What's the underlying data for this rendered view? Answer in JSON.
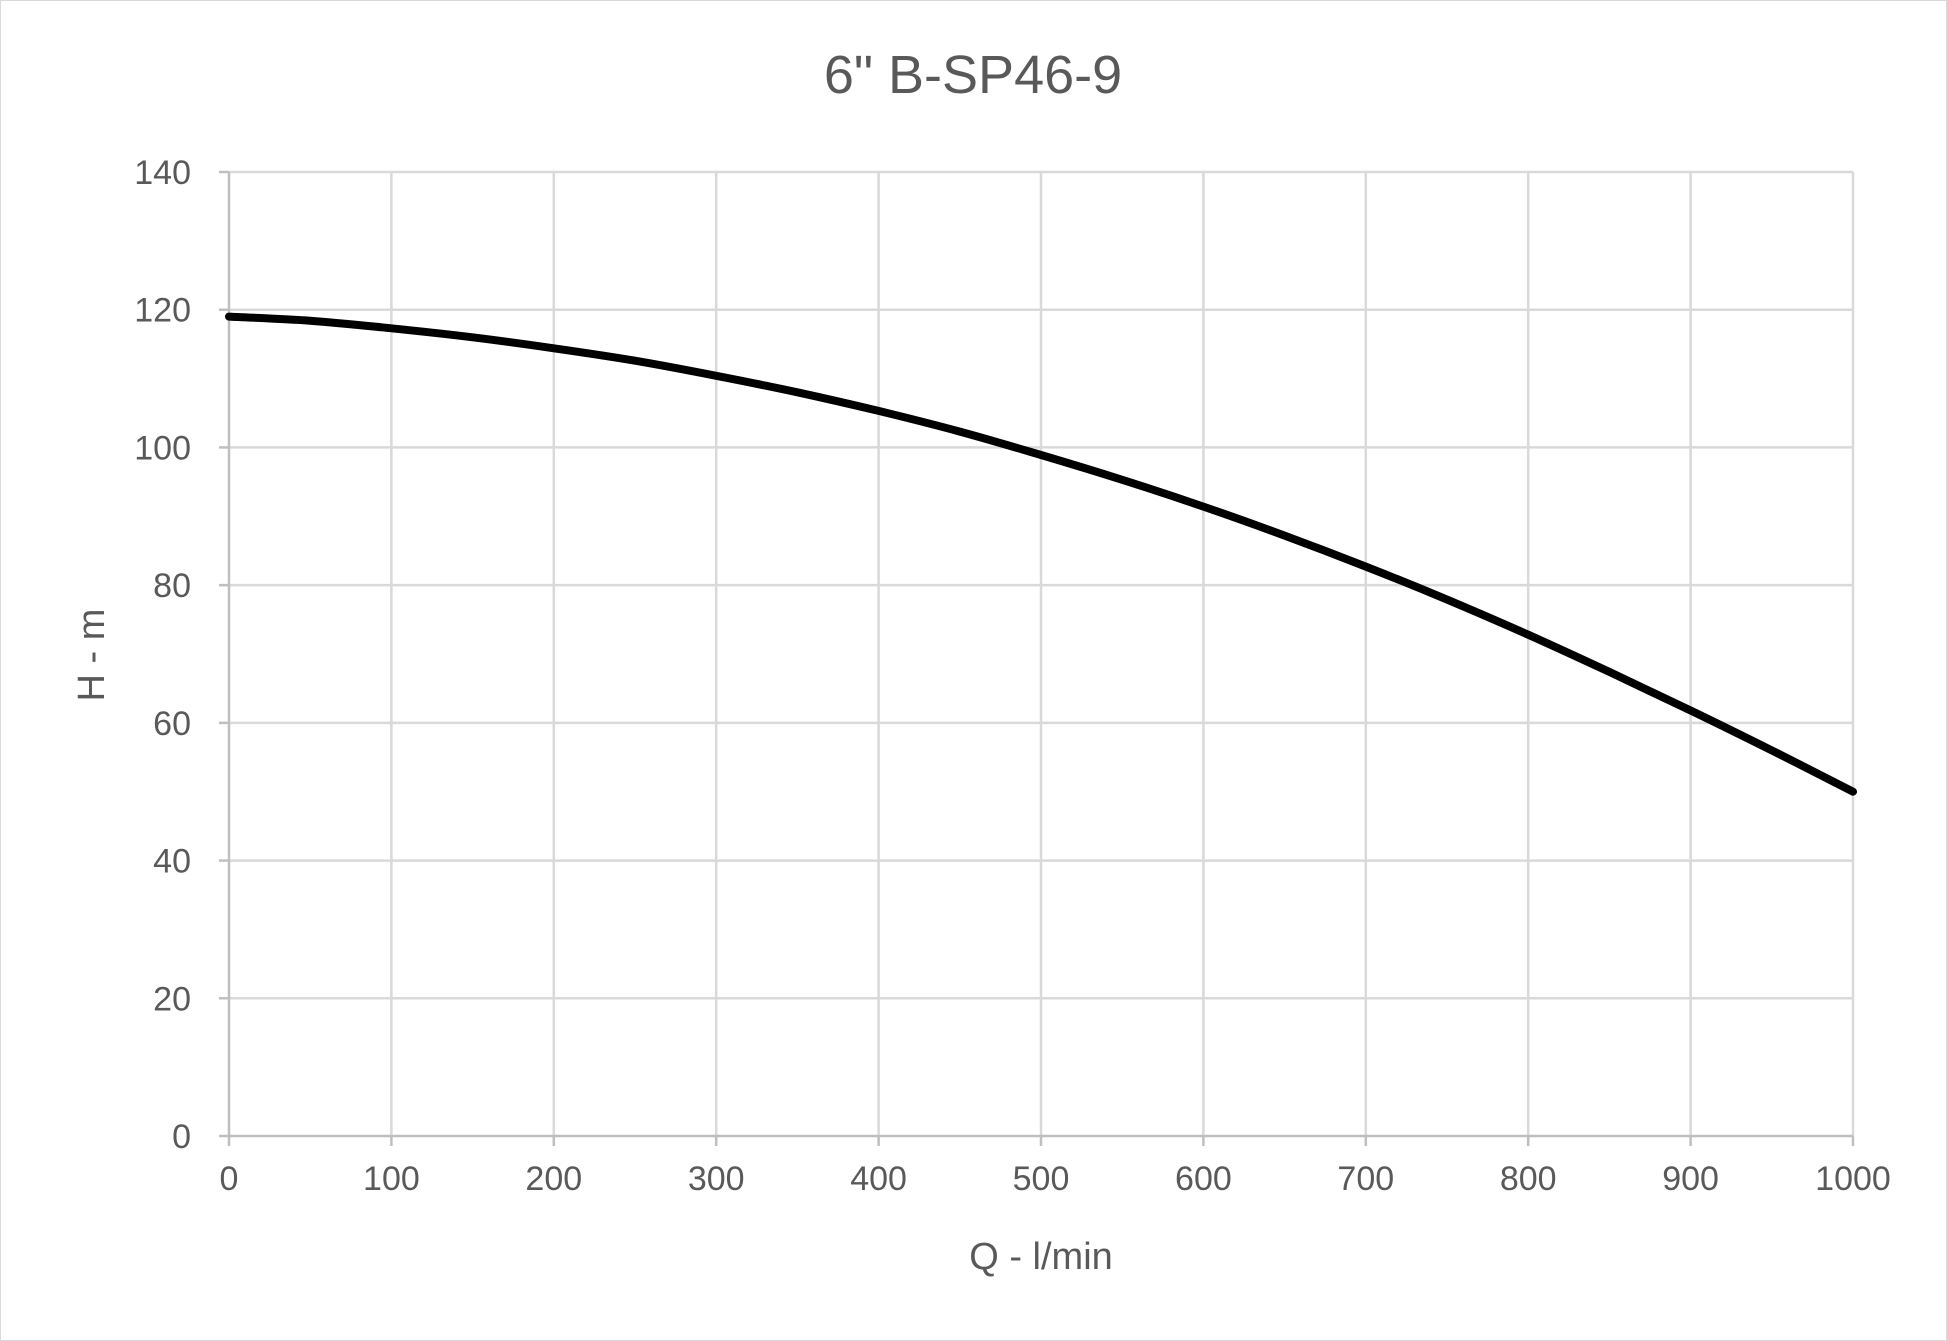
{
  "chart_data": {
    "type": "line",
    "title": "6\" B-SP46-9",
    "xlabel": "Q - l/min",
    "ylabel": "H - m",
    "xlim": [
      0,
      1000
    ],
    "ylim": [
      0,
      140
    ],
    "x_ticks": [
      0,
      100,
      200,
      300,
      400,
      500,
      600,
      700,
      800,
      900,
      1000
    ],
    "y_ticks": [
      0,
      20,
      40,
      60,
      80,
      100,
      120,
      140
    ],
    "grid": true,
    "legend": "none",
    "series": [
      {
        "color": "#000000",
        "x": [
          0,
          50,
          100,
          150,
          200,
          250,
          300,
          350,
          400,
          450,
          500,
          550,
          600,
          650,
          700,
          750,
          800,
          850,
          900,
          950,
          1000
        ],
        "y": [
          119,
          118.4,
          117.3,
          116,
          114.4,
          112.6,
          110.4,
          108,
          105.3,
          102.3,
          98.9,
          95.3,
          91.4,
          87.2,
          82.7,
          77.9,
          72.8,
          67.4,
          61.8,
          56,
          50
        ]
      }
    ]
  }
}
